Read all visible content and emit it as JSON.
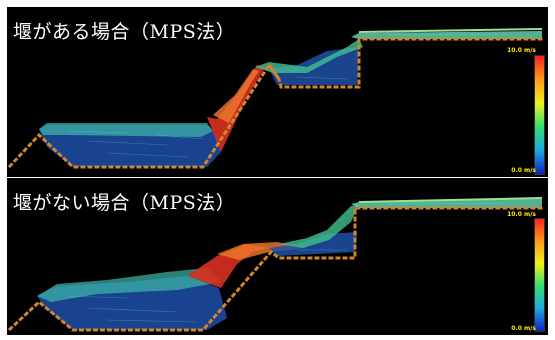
{
  "panels": [
    {
      "title": "堰がある場合（MPS法）",
      "scale_max": "10.0 m/s",
      "scale_min": "0.0 m/s"
    },
    {
      "title": "堰がない場合（MPS法）",
      "scale_max": "10.0 m/s",
      "scale_min": "0.0 m/s"
    }
  ],
  "colors": {
    "wall": "#d08530",
    "background": "#000000",
    "slow": "#1a3fa0",
    "medium": "#30c0a0",
    "fast": "#ff3020"
  }
}
